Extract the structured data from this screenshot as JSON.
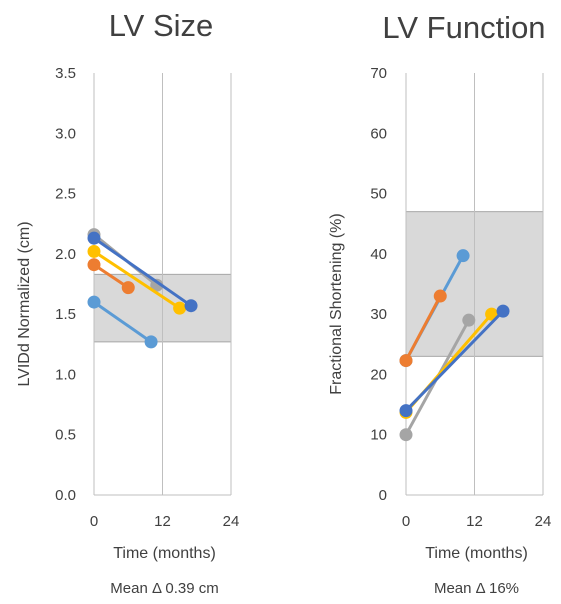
{
  "chart_data": [
    {
      "type": "line",
      "title": "LV Size",
      "xlabel": "Time (months)",
      "ylabel": "LVIDd Normalized (cm)",
      "xlim": [
        0,
        24
      ],
      "ylim": [
        0,
        3.5
      ],
      "xticks": [
        "0",
        "12",
        "24"
      ],
      "yticks": [
        "0.0",
        "0.5",
        "1.0",
        "1.5",
        "2.0",
        "2.5",
        "3.0",
        "3.5"
      ],
      "reference_band": [
        1.27,
        1.83
      ],
      "grid": "vertical",
      "note": "Mean Δ 0.39 cm",
      "series": [
        {
          "color": "#5b9bd5",
          "points": [
            [
              0,
              1.6
            ],
            [
              10,
              1.27
            ]
          ]
        },
        {
          "color": "#ed7d31",
          "points": [
            [
              0,
              1.91
            ],
            [
              6,
              1.72
            ]
          ]
        },
        {
          "color": "#a5a5a5",
          "points": [
            [
              0,
              2.16
            ],
            [
              11,
              1.74
            ]
          ]
        },
        {
          "color": "#ffc000",
          "points": [
            [
              0,
              2.02
            ],
            [
              15,
              1.55
            ]
          ]
        },
        {
          "color": "#4472c4",
          "points": [
            [
              0,
              2.13
            ],
            [
              17,
              1.57
            ]
          ]
        }
      ]
    },
    {
      "type": "line",
      "title": "LV Function",
      "xlabel": "Time (months)",
      "ylabel": "Fractional Shortening (%)",
      "xlim": [
        0,
        24
      ],
      "ylim": [
        0,
        70
      ],
      "xticks": [
        "0",
        "12",
        "24"
      ],
      "yticks": [
        "0",
        "10",
        "20",
        "30",
        "40",
        "50",
        "60",
        "70"
      ],
      "reference_band": [
        23,
        47
      ],
      "grid": "vertical",
      "note": "Mean Δ 16%",
      "series": [
        {
          "color": "#5b9bd5",
          "points": [
            [
              0,
              22.3
            ],
            [
              10,
              39.7
            ]
          ]
        },
        {
          "color": "#ed7d31",
          "points": [
            [
              0,
              22.3
            ],
            [
              6,
              33.0
            ]
          ]
        },
        {
          "color": "#a5a5a5",
          "points": [
            [
              0,
              10.0
            ],
            [
              11,
              29.0
            ]
          ]
        },
        {
          "color": "#ffc000",
          "points": [
            [
              0,
              13.7
            ],
            [
              15,
              30.0
            ]
          ]
        },
        {
          "color": "#4472c4",
          "points": [
            [
              0,
              14.0
            ],
            [
              17,
              30.5
            ]
          ]
        }
      ]
    }
  ]
}
